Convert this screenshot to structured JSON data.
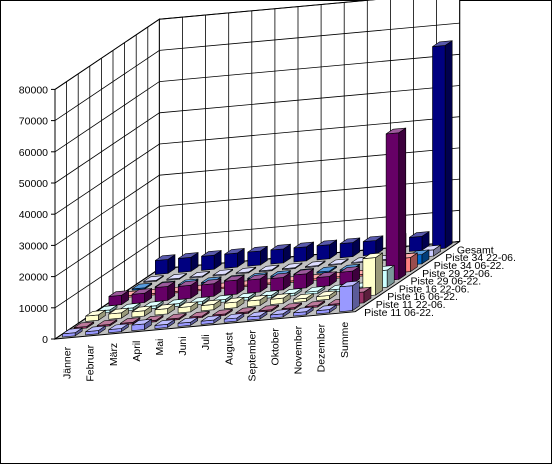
{
  "chart_data": {
    "type": "bar",
    "subtype": "3d-column",
    "title": "",
    "xlabel": "",
    "ylabel": "",
    "ylim": [
      0,
      80000
    ],
    "yticks": [
      "0",
      "10000",
      "20000",
      "30000",
      "40000",
      "50000",
      "60000",
      "70000",
      "80000"
    ],
    "grid": true,
    "legend": "none",
    "categories": [
      "Jänner",
      "Februar",
      "März",
      "April",
      "Mai",
      "Juni",
      "Juli",
      "August",
      "September",
      "Oktober",
      "November",
      "Dezember",
      "Summe"
    ],
    "series": [
      {
        "name": "Piste 11 06-22.",
        "color": "#9999ff",
        "values": [
          1000,
          1000,
          1000,
          1800,
          1000,
          1000,
          1000,
          1000,
          1000,
          1000,
          1000,
          1000,
          8000
        ]
      },
      {
        "name": "Piste 11 22-06.",
        "color": "#993366",
        "values": [
          500,
          500,
          500,
          500,
          500,
          500,
          500,
          500,
          500,
          500,
          500,
          500,
          3500
        ]
      },
      {
        "name": "Piste 16 06-22.",
        "color": "#ffffcc",
        "values": [
          1700,
          1700,
          1700,
          1700,
          1700,
          1700,
          1800,
          1800,
          1700,
          1000,
          1200,
          1700,
          12000
        ]
      },
      {
        "name": "Piste 16 22-06.",
        "color": "#ccffff",
        "values": [
          800,
          800,
          800,
          800,
          800,
          800,
          800,
          800,
          800,
          800,
          800,
          800,
          5500
        ]
      },
      {
        "name": "Piste 29 06-22.",
        "color": "#660066",
        "values": [
          3000,
          3000,
          4500,
          4200,
          4000,
          4500,
          4200,
          4000,
          4500,
          3000,
          4000,
          3500,
          47000
        ]
      },
      {
        "name": "Piste 29 22-06.",
        "color": "#ff8080",
        "values": [
          500,
          500,
          500,
          500,
          500,
          500,
          500,
          500,
          500,
          500,
          500,
          500,
          4500
        ]
      },
      {
        "name": "Piste 34 06-22.",
        "color": "#0066cc",
        "values": [
          400,
          400,
          400,
          400,
          400,
          400,
          400,
          400,
          400,
          400,
          400,
          400,
          3000
        ]
      },
      {
        "name": "Piste 34 22-06.",
        "color": "#ccccff",
        "values": [
          300,
          300,
          300,
          300,
          300,
          300,
          300,
          300,
          300,
          300,
          300,
          300,
          2000
        ]
      },
      {
        "name": "Gesamt",
        "color": "#000080",
        "values": [
          4500,
          4500,
          4500,
          4500,
          4500,
          4500,
          4500,
          4500,
          4500,
          4500,
          4500,
          4500,
          65000
        ]
      }
    ]
  }
}
